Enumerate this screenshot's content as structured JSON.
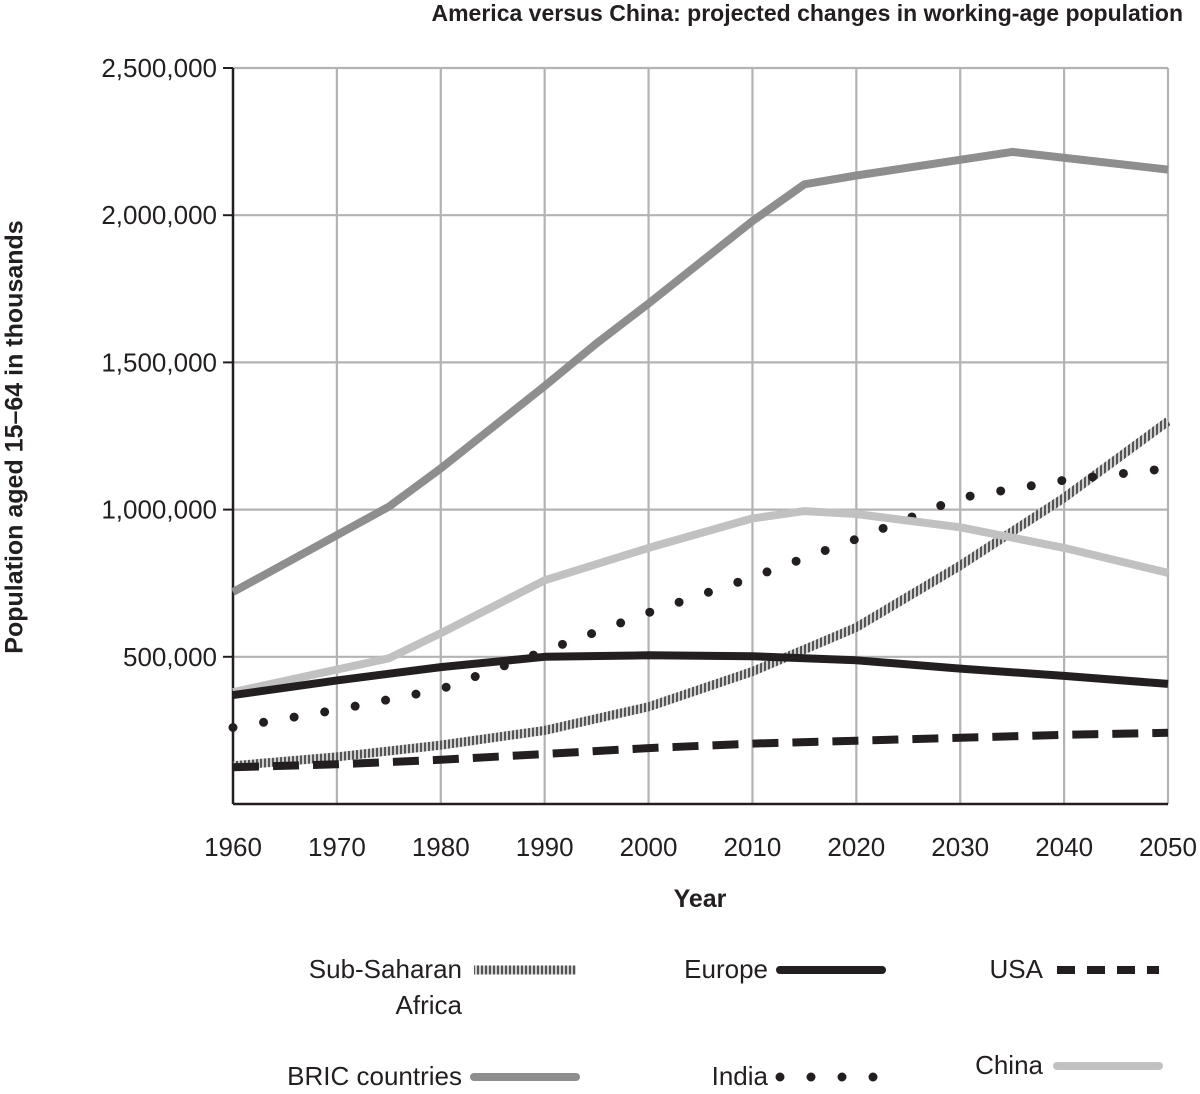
{
  "chart_data": {
    "type": "line",
    "title": "America versus China: projected changes in working-age population",
    "xlabel": "Year",
    "ylabel": "Population aged 15–64 in thousands",
    "xlim": [
      1960,
      2050
    ],
    "ylim": [
      0,
      2500000
    ],
    "x_ticks": [
      1960,
      1970,
      1980,
      1990,
      2000,
      2010,
      2020,
      2030,
      2040,
      2050
    ],
    "x_tick_labels": [
      "1960",
      "1970",
      "1980",
      "1990",
      "2000",
      "2010",
      "2020",
      "2030",
      "2040",
      "2050"
    ],
    "y_ticks": [
      500000,
      1000000,
      1500000,
      2000000,
      2500000
    ],
    "y_tick_labels": [
      "500,000",
      "1,000,000",
      "1,500,000",
      "2,000,000",
      "2,500,000"
    ],
    "grid": true,
    "legend_position": "bottom",
    "series": [
      {
        "name": "BRIC countries",
        "style": "solid",
        "color": "#8e8e8e",
        "x": [
          1960,
          1975,
          1980,
          1990,
          1995,
          2000,
          2010,
          2015,
          2020,
          2035,
          2050
        ],
        "y": [
          720000,
          1010000,
          1140000,
          1420000,
          1565000,
          1700000,
          1980000,
          2105000,
          2135000,
          2215000,
          2155000
        ]
      },
      {
        "name": "China",
        "style": "solid",
        "color": "#c1c1c1",
        "x": [
          1960,
          1975,
          1980,
          1990,
          2000,
          2010,
          2015,
          2020,
          2030,
          2040,
          2050
        ],
        "y": [
          380000,
          495000,
          580000,
          760000,
          870000,
          970000,
          995000,
          985000,
          940000,
          870000,
          785000
        ]
      },
      {
        "name": "India",
        "style": "dotted",
        "color": "#231f20",
        "x": [
          1960,
          1970,
          1980,
          1990,
          2000,
          2010,
          2020,
          2030,
          2040,
          2050
        ],
        "y": [
          260000,
          320000,
          390000,
          520000,
          650000,
          770000,
          900000,
          1040000,
          1100000,
          1140000
        ]
      },
      {
        "name": "Europe",
        "style": "solid",
        "color": "#231f20",
        "x": [
          1960,
          1970,
          1980,
          1990,
          2000,
          2010,
          2020,
          2030,
          2040,
          2050
        ],
        "y": [
          370000,
          420000,
          465000,
          500000,
          505000,
          502000,
          488000,
          460000,
          435000,
          408000
        ]
      },
      {
        "name": "Sub-Saharan Africa",
        "style": "hatched",
        "color": "#777777",
        "x": [
          1960,
          1970,
          1980,
          1990,
          2000,
          2010,
          2020,
          2030,
          2040,
          2050
        ],
        "y": [
          130000,
          160000,
          200000,
          250000,
          330000,
          450000,
          600000,
          810000,
          1040000,
          1300000
        ]
      },
      {
        "name": "USA",
        "style": "dashed",
        "color": "#231f20",
        "x": [
          1960,
          1970,
          1980,
          1990,
          2000,
          2010,
          2020,
          2030,
          2040,
          2050
        ],
        "y": [
          125000,
          135000,
          150000,
          170000,
          190000,
          205000,
          215000,
          225000,
          235000,
          242000
        ]
      }
    ]
  },
  "legend": [
    {
      "label_lines": [
        "Sub-Saharan",
        "Africa"
      ],
      "style": "hatched",
      "color": "#777777"
    },
    {
      "label_lines": [
        "Europe"
      ],
      "style": "solid",
      "color": "#231f20"
    },
    {
      "label_lines": [
        "USA"
      ],
      "style": "dashed",
      "color": "#231f20"
    },
    {
      "label_lines": [
        "BRIC countries"
      ],
      "style": "solid",
      "color": "#8e8e8e"
    },
    {
      "label_lines": [
        "India"
      ],
      "style": "dotted",
      "color": "#231f20"
    },
    {
      "label_lines": [
        "China"
      ],
      "style": "solid",
      "color": "#c1c1c1"
    }
  ]
}
